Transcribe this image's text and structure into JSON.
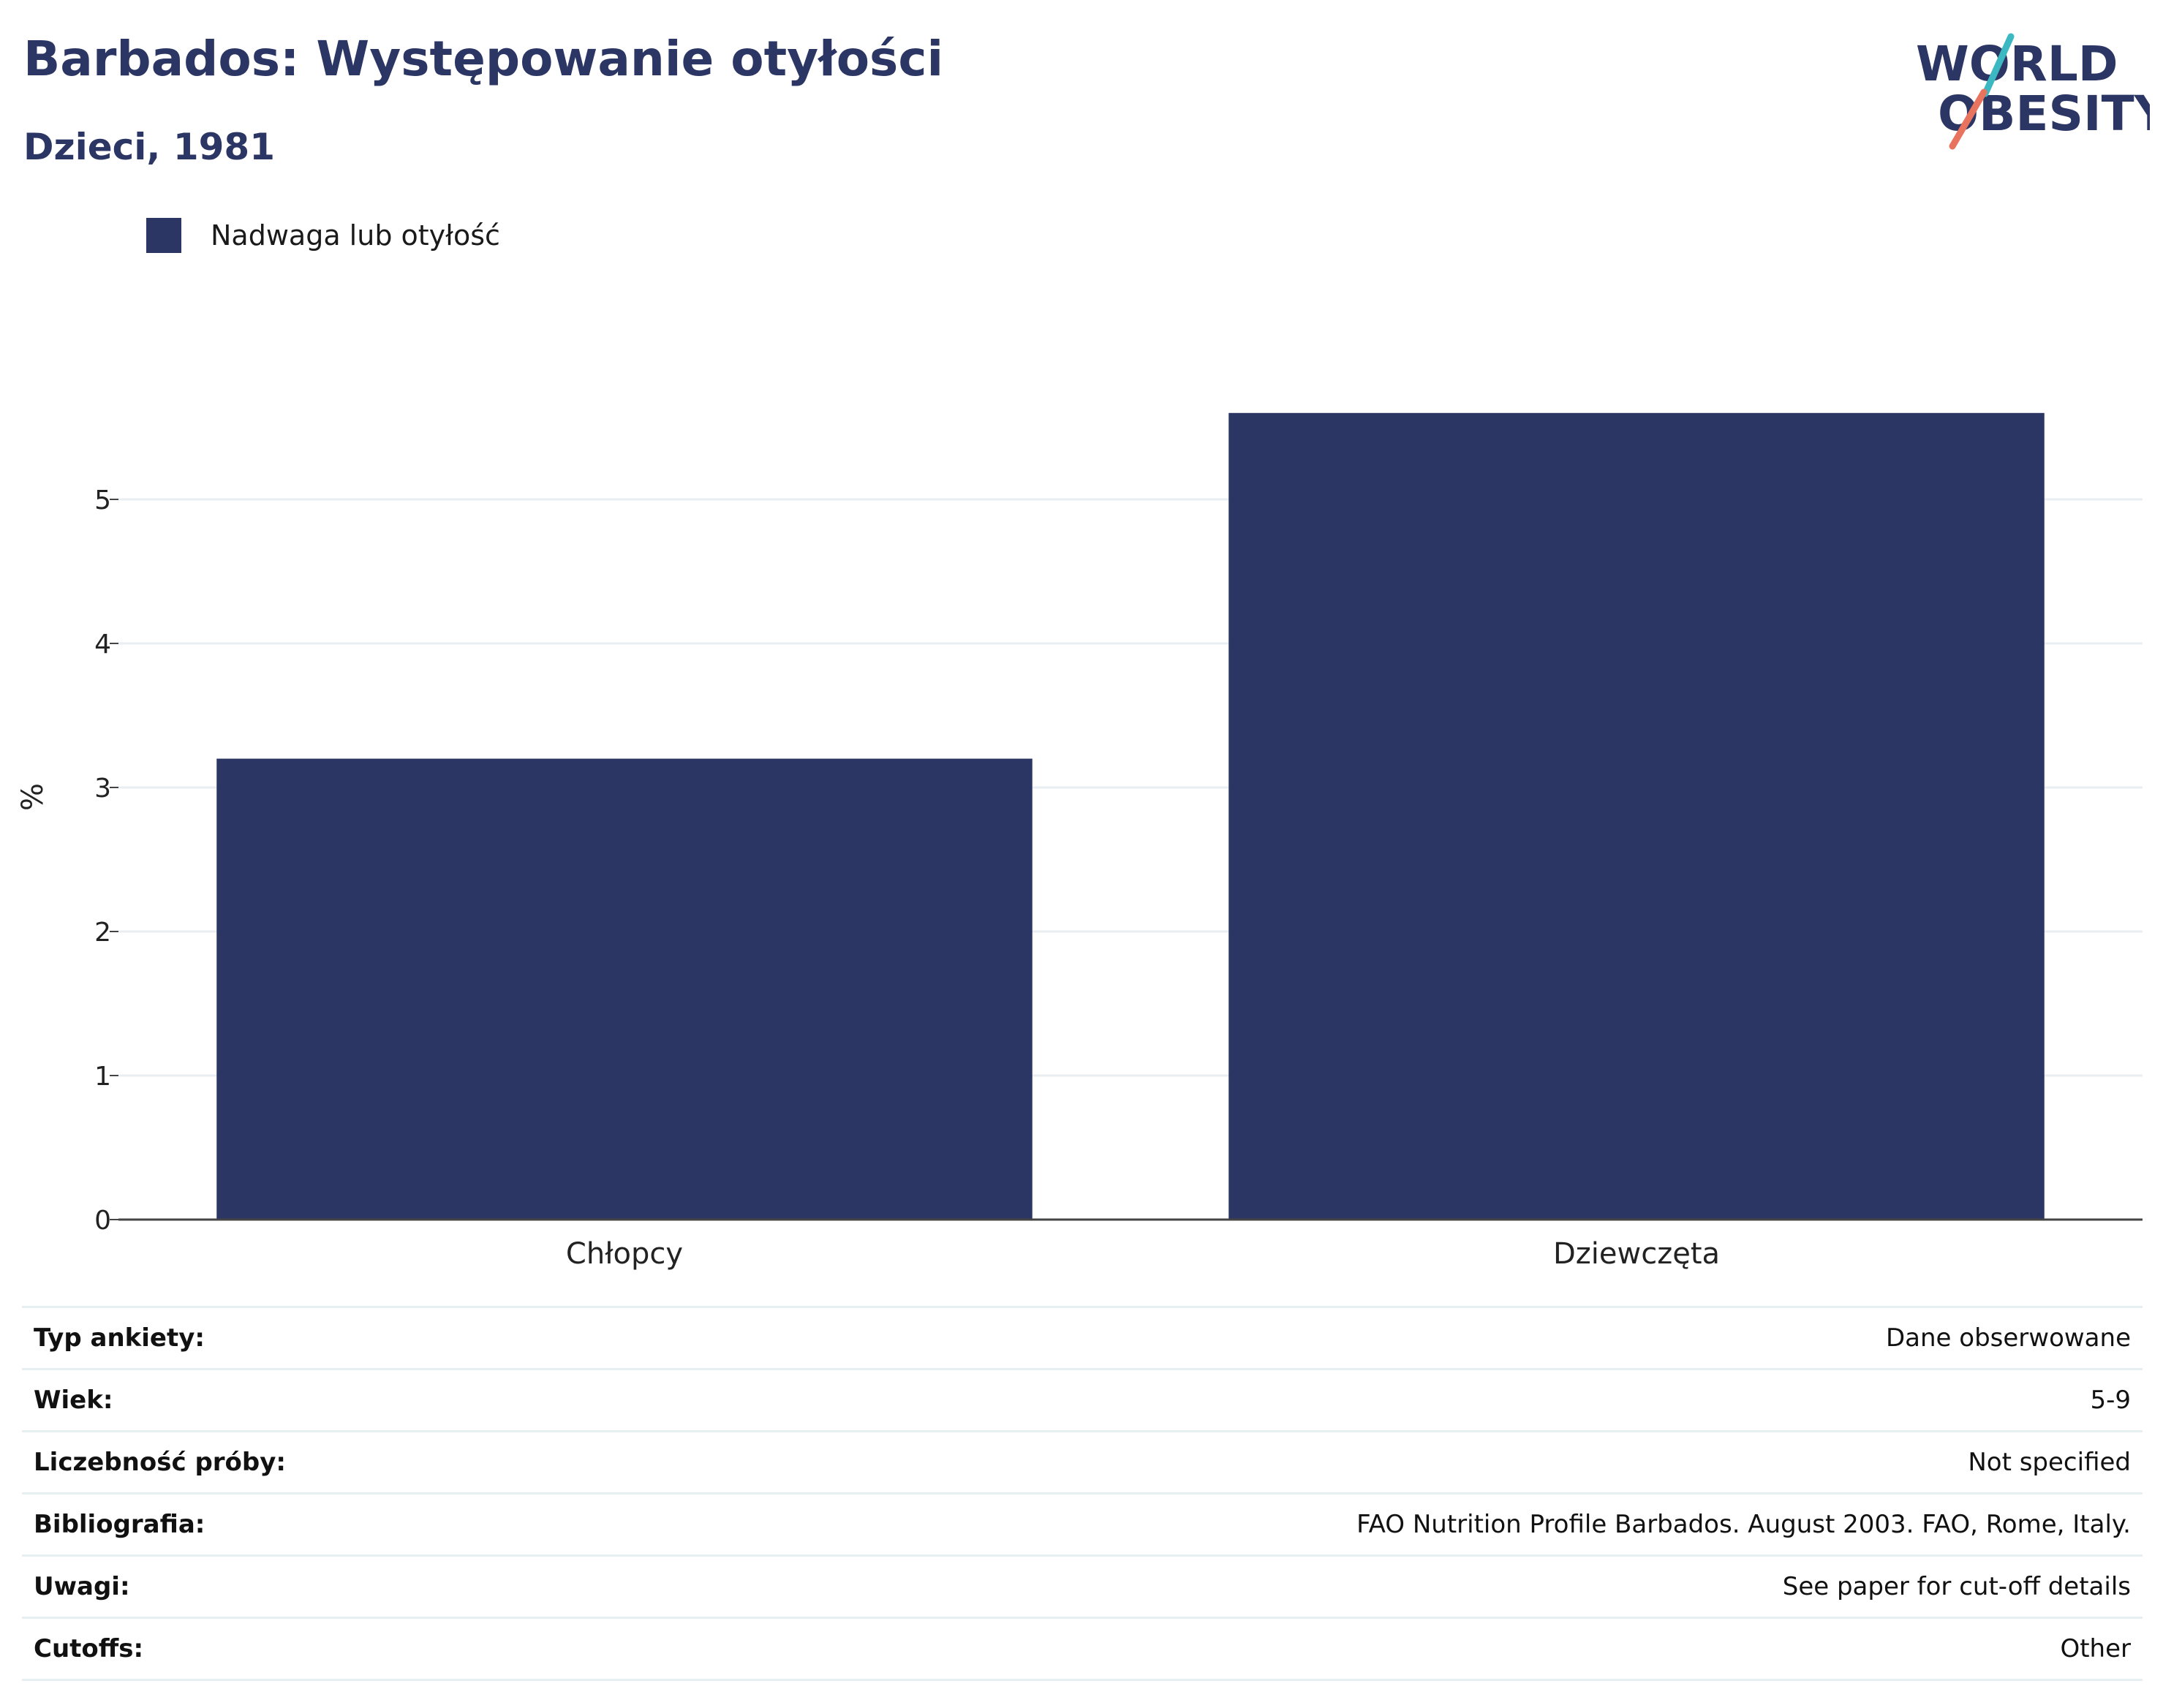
{
  "header": {
    "title": "Barbados: Występowanie otyłości",
    "subtitle": "Dzieci, 1981"
  },
  "logo": {
    "line1": "WORLD",
    "line2": "OBESITY"
  },
  "colors": {
    "bar": "#2b3664",
    "grid": "#e8eef1",
    "text": "#2b3664"
  },
  "chart_data": {
    "type": "bar",
    "categories": [
      "Chłopcy",
      "Dziewczęta"
    ],
    "series": [
      {
        "name": "Nadwaga lub otyłość",
        "values": [
          3.2,
          5.6
        ]
      }
    ],
    "ylabel": "%",
    "xlabel": "",
    "ylim": [
      0,
      6
    ],
    "yticks": [
      0,
      1,
      2,
      3,
      4,
      5
    ],
    "legend_position": "top-left",
    "grid": true
  },
  "meta": [
    {
      "key": "Typ ankiety:",
      "value": "Dane obserwowane"
    },
    {
      "key": "Wiek:",
      "value": "5-9"
    },
    {
      "key": "Liczebność próby:",
      "value": "Not specified"
    },
    {
      "key": "Bibliografia:",
      "value": "FAO Nutrition Profile Barbados. August 2003. FAO, Rome, Italy."
    },
    {
      "key": "Uwagi:",
      "value": "See paper for cut-off details"
    },
    {
      "key": "Cutoffs:",
      "value": "Other"
    }
  ]
}
